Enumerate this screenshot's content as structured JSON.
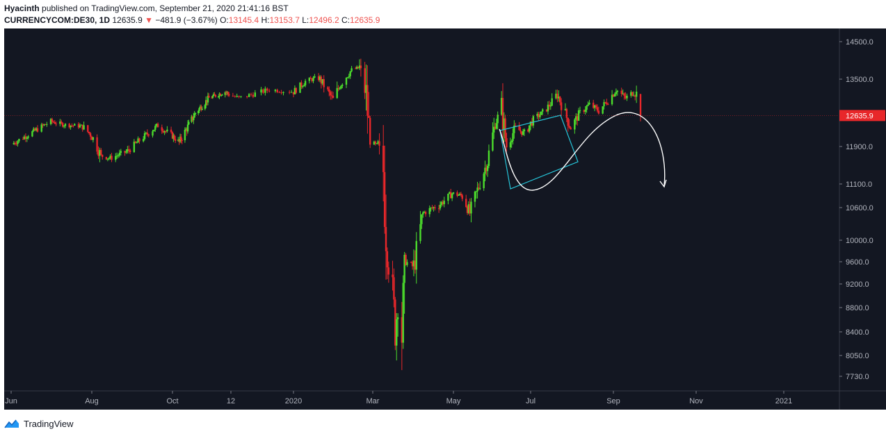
{
  "header": {
    "author": "Hyacinth",
    "published_text": " published on TradingView.com, September 21, 2020 21:41:16 BST",
    "symbol": "CURRENCYCOM:DE30, 1D",
    "last": "12635.9",
    "change_arrow": "▼",
    "change": "−481.9 (−3.67%)",
    "o_label": "O:",
    "o_value": "13145.4",
    "h_label": "H:",
    "h_value": "13153.7",
    "l_label": "L:",
    "l_value": "12496.2",
    "c_label": "C:",
    "c_value": "12635.9"
  },
  "footer": {
    "brand": "TradingView"
  },
  "colors": {
    "up": "#4cdd2c",
    "down": "#e8272a",
    "background": "#131722",
    "annotation_box": "#26c6da",
    "annotation_curve": "#ffffff"
  },
  "chart_data": {
    "type": "candlestick",
    "y_ticks": [
      14500,
      13500,
      11900,
      11100,
      10600,
      10000,
      9600,
      9200,
      8800,
      8400,
      8050,
      7730
    ],
    "y_tick_labels": [
      "14500.0",
      "13500.0",
      "11900.0",
      "11100.0",
      "10600.0",
      "10000.0",
      "9600.0",
      "9200.0",
      "8800.0",
      "8400.0",
      "8050.0",
      "7730.0"
    ],
    "x_labels": [
      "Jun",
      "Aug",
      "Oct",
      "12",
      "2020",
      "Mar",
      "May",
      "Jul",
      "Sep",
      "Nov",
      "2021"
    ],
    "x_label_dates": [
      "2019-06-01",
      "2019-08-01",
      "2019-10-01",
      "2019-12-01",
      "2020-01-01",
      "2020-03-01",
      "2020-05-01",
      "2020-07-01",
      "2020-09-01",
      "2020-11-01",
      "2021-01-01"
    ],
    "last_price_label": "12635.9",
    "last_price": 12635.9,
    "close_series": [
      [
        "2019-06-01",
        11950
      ],
      [
        "2019-06-15",
        12200
      ],
      [
        "2019-07-01",
        12500
      ],
      [
        "2019-07-10",
        12420
      ],
      [
        "2019-07-25",
        12380
      ],
      [
        "2019-08-01",
        12150
      ],
      [
        "2019-08-08",
        11700
      ],
      [
        "2019-08-15",
        11650
      ],
      [
        "2019-08-28",
        11800
      ],
      [
        "2019-09-10",
        12150
      ],
      [
        "2019-09-20",
        12400
      ],
      [
        "2019-10-01",
        12150
      ],
      [
        "2019-10-08",
        12000
      ],
      [
        "2019-10-25",
        12700
      ],
      [
        "2019-11-08",
        13050
      ],
      [
        "2019-11-25",
        13200
      ],
      [
        "2019-12-05",
        13050
      ],
      [
        "2019-12-20",
        13250
      ],
      [
        "2020-01-01",
        13200
      ],
      [
        "2020-01-10",
        13450
      ],
      [
        "2020-01-20",
        13550
      ],
      [
        "2020-01-31",
        13000
      ],
      [
        "2020-02-05",
        13350
      ],
      [
        "2020-02-14",
        13750
      ],
      [
        "2020-02-20",
        13800
      ],
      [
        "2020-02-25",
        13100
      ],
      [
        "2020-02-28",
        12000
      ],
      [
        "2020-03-05",
        11900
      ],
      [
        "2020-03-09",
        11400
      ],
      [
        "2020-03-10",
        10800
      ],
      [
        "2020-03-12",
        9800
      ],
      [
        "2020-03-16",
        9000
      ],
      [
        "2020-03-18",
        8450
      ],
      [
        "2020-03-20",
        8900
      ],
      [
        "2020-03-23",
        8400
      ],
      [
        "2020-03-26",
        9600
      ],
      [
        "2020-04-01",
        9500
      ],
      [
        "2020-04-08",
        10500
      ],
      [
        "2020-04-20",
        10650
      ],
      [
        "2020-04-30",
        10900
      ],
      [
        "2020-05-08",
        10850
      ],
      [
        "2020-05-14",
        10500
      ],
      [
        "2020-05-21",
        11050
      ],
      [
        "2020-05-28",
        11600
      ],
      [
        "2020-06-03",
        12450
      ],
      [
        "2020-06-08",
        12800
      ],
      [
        "2020-06-12",
        11900
      ],
      [
        "2020-06-19",
        12350
      ],
      [
        "2020-06-26",
        12200
      ],
      [
        "2020-07-03",
        12550
      ],
      [
        "2020-07-10",
        12700
      ],
      [
        "2020-07-17",
        12950
      ],
      [
        "2020-07-21",
        13150
      ],
      [
        "2020-07-31",
        12350
      ],
      [
        "2020-08-07",
        12700
      ],
      [
        "2020-08-14",
        12900
      ],
      [
        "2020-08-21",
        12750
      ],
      [
        "2020-08-28",
        13000
      ],
      [
        "2020-09-03",
        13250
      ],
      [
        "2020-09-10",
        13050
      ],
      [
        "2020-09-16",
        13200
      ],
      [
        "2020-09-18",
        13120
      ],
      [
        "2020-09-21",
        12635.9
      ]
    ]
  }
}
